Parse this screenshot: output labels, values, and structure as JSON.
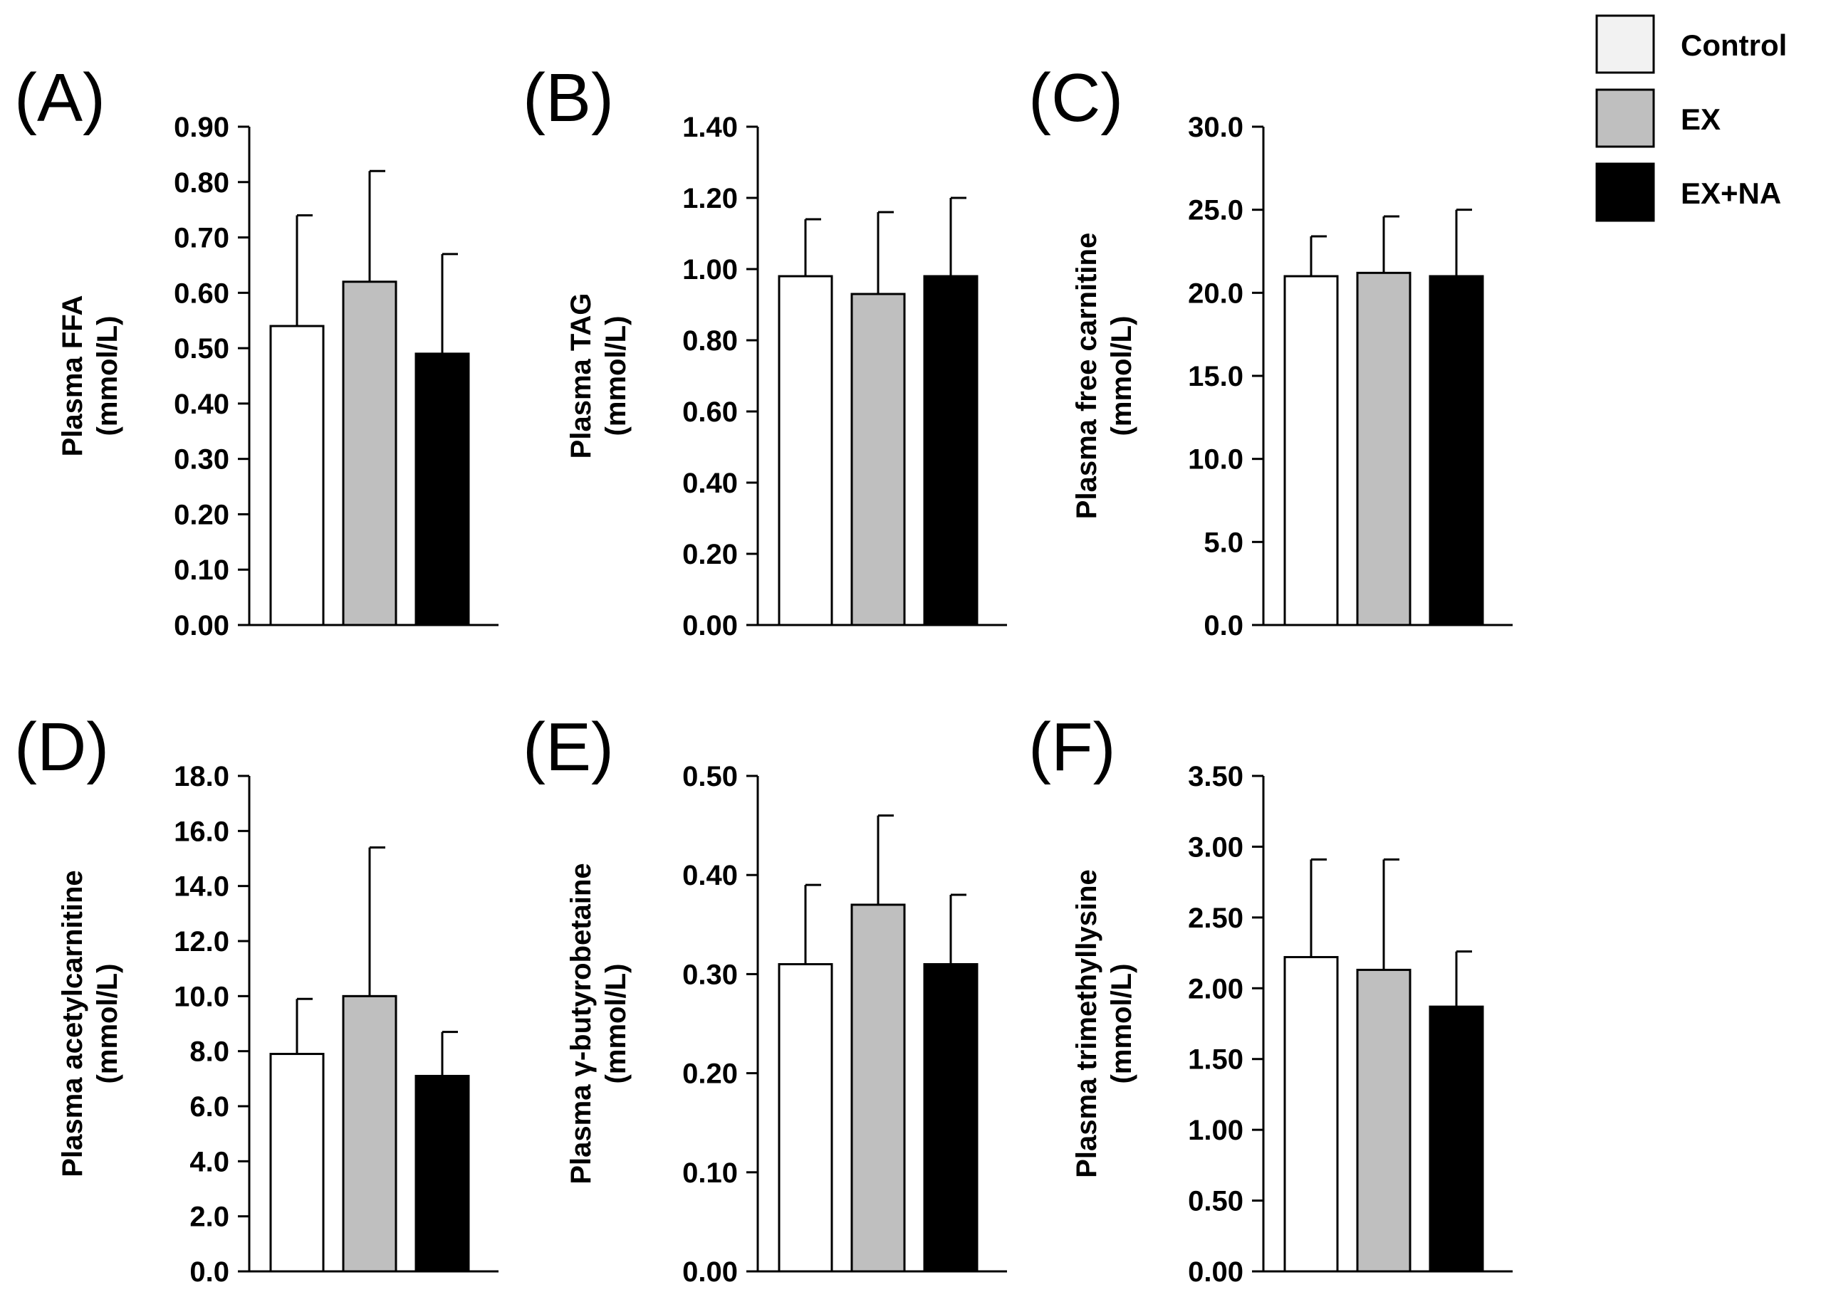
{
  "legend": {
    "items": [
      {
        "label": "Control",
        "color": "#f2f2f2"
      },
      {
        "label": "EX",
        "color": "#bfbfbf"
      },
      {
        "label": "EX+NA",
        "color": "#000000"
      }
    ]
  },
  "chart_data": [
    {
      "type": "bar",
      "panel": "(A)",
      "title": "",
      "ylabel": "Plasma FFA",
      "yunit": "(mmol/L)",
      "categories": [
        "Control",
        "EX",
        "EX+NA"
      ],
      "colors": [
        "#ffffff",
        "#bfbfbf",
        "#000000"
      ],
      "values": [
        0.54,
        0.62,
        0.49
      ],
      "errors": [
        0.2,
        0.2,
        0.18
      ],
      "ylim": [
        0,
        0.9
      ],
      "yticks": [
        "0.00",
        "0.10",
        "0.20",
        "0.30",
        "0.40",
        "0.50",
        "0.60",
        "0.70",
        "0.80",
        "0.90"
      ]
    },
    {
      "type": "bar",
      "panel": "(B)",
      "title": "",
      "ylabel": "Plasma TAG",
      "yunit": "(mmol/L)",
      "categories": [
        "Control",
        "EX",
        "EX+NA"
      ],
      "colors": [
        "#ffffff",
        "#bfbfbf",
        "#000000"
      ],
      "values": [
        0.98,
        0.93,
        0.98
      ],
      "errors": [
        0.16,
        0.23,
        0.22
      ],
      "ylim": [
        0,
        1.4
      ],
      "yticks": [
        "0.00",
        "0.20",
        "0.40",
        "0.60",
        "0.80",
        "1.00",
        "1.20",
        "1.40"
      ]
    },
    {
      "type": "bar",
      "panel": "(C)",
      "title": "",
      "ylabel": "Plasma free carnitine",
      "yunit": "(mmol/L)",
      "categories": [
        "Control",
        "EX",
        "EX+NA"
      ],
      "colors": [
        "#ffffff",
        "#bfbfbf",
        "#000000"
      ],
      "values": [
        21.0,
        21.2,
        21.0
      ],
      "errors": [
        2.4,
        3.4,
        4.0
      ],
      "ylim": [
        0,
        30
      ],
      "yticks": [
        "0.0",
        "5.0",
        "10.0",
        "15.0",
        "20.0",
        "25.0",
        "30.0"
      ]
    },
    {
      "type": "bar",
      "panel": "(D)",
      "title": "",
      "ylabel": "Plasma acetylcarnitine",
      "yunit": "(mmol/L)",
      "categories": [
        "Control",
        "EX",
        "EX+NA"
      ],
      "colors": [
        "#ffffff",
        "#bfbfbf",
        "#000000"
      ],
      "values": [
        7.9,
        10.0,
        7.1
      ],
      "errors": [
        2.0,
        5.4,
        1.6
      ],
      "ylim": [
        0,
        18
      ],
      "yticks": [
        "0.0",
        "2.0",
        "4.0",
        "6.0",
        "8.0",
        "10.0",
        "12.0",
        "14.0",
        "16.0",
        "18.0"
      ]
    },
    {
      "type": "bar",
      "panel": "(E)",
      "title": "",
      "ylabel": "Plasma γ-butyrobetaine",
      "yunit": "(mmol/L)",
      "categories": [
        "Control",
        "EX",
        "EX+NA"
      ],
      "colors": [
        "#ffffff",
        "#bfbfbf",
        "#000000"
      ],
      "values": [
        0.31,
        0.37,
        0.31
      ],
      "errors": [
        0.08,
        0.09,
        0.07
      ],
      "ylim": [
        0,
        0.5
      ],
      "yticks": [
        "0.00",
        "0.10",
        "0.20",
        "0.30",
        "0.40",
        "0.50"
      ]
    },
    {
      "type": "bar",
      "panel": "(F)",
      "title": "",
      "ylabel": "Plasma trimethyllysine",
      "yunit": "(mmol/L)",
      "categories": [
        "Control",
        "EX",
        "EX+NA"
      ],
      "colors": [
        "#ffffff",
        "#bfbfbf",
        "#000000"
      ],
      "values": [
        2.22,
        2.13,
        1.87
      ],
      "errors": [
        0.69,
        0.78,
        0.39
      ],
      "ylim": [
        0,
        3.5
      ],
      "yticks": [
        "0.00",
        "0.50",
        "1.00",
        "1.50",
        "2.00",
        "2.50",
        "3.00",
        "3.50"
      ]
    }
  ]
}
